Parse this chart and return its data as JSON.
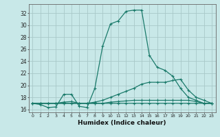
{
  "title": "",
  "xlabel": "Humidex (Indice chaleur)",
  "ylabel": "",
  "bg_color": "#c8e8e8",
  "grid_color": "#a8c8c8",
  "line_color": "#1a7a6a",
  "xlim": [
    -0.5,
    23.5
  ],
  "ylim": [
    15.5,
    33.5
  ],
  "xticks": [
    0,
    1,
    2,
    3,
    4,
    5,
    6,
    7,
    8,
    9,
    10,
    11,
    12,
    13,
    14,
    15,
    16,
    17,
    18,
    19,
    20,
    21,
    22,
    23
  ],
  "yticks": [
    16,
    18,
    20,
    22,
    24,
    26,
    28,
    30,
    32
  ],
  "series": [
    {
      "x": [
        0,
        1,
        2,
        3,
        4,
        5,
        6,
        7,
        8,
        9,
        10,
        11,
        12,
        13,
        14,
        15,
        16,
        17,
        18,
        19,
        20,
        21,
        22,
        23
      ],
      "y": [
        17.0,
        16.8,
        16.3,
        16.4,
        18.5,
        18.5,
        16.5,
        16.3,
        19.5,
        26.5,
        30.2,
        30.7,
        32.3,
        32.5,
        32.5,
        25.0,
        23.0,
        22.5,
        21.5,
        19.5,
        18.0,
        17.5,
        17.0,
        17.0
      ],
      "marker": "+",
      "linestyle": "-",
      "linewidth": 0.9,
      "markersize": 3
    },
    {
      "x": [
        0,
        1,
        2,
        3,
        4,
        5,
        6,
        7,
        8,
        9,
        10,
        11,
        12,
        13,
        14,
        15,
        16,
        17,
        18,
        19,
        20,
        21,
        22,
        23
      ],
      "y": [
        17.0,
        17.0,
        17.0,
        17.0,
        17.0,
        17.0,
        17.0,
        17.0,
        17.2,
        17.5,
        18.0,
        18.5,
        19.0,
        19.5,
        20.2,
        20.5,
        20.5,
        20.5,
        20.8,
        21.0,
        19.2,
        18.0,
        17.5,
        17.0
      ],
      "marker": "+",
      "linestyle": "-",
      "linewidth": 0.9,
      "markersize": 3
    },
    {
      "x": [
        0,
        1,
        2,
        3,
        4,
        5,
        6,
        7,
        8,
        9,
        10,
        11,
        12,
        13,
        14,
        15,
        16,
        17,
        18,
        19,
        20,
        21,
        22,
        23
      ],
      "y": [
        17.0,
        17.0,
        17.0,
        17.0,
        17.0,
        17.0,
        17.0,
        17.0,
        17.0,
        17.0,
        17.2,
        17.3,
        17.4,
        17.5,
        17.5,
        17.5,
        17.5,
        17.5,
        17.5,
        17.5,
        17.5,
        17.3,
        17.0,
        17.0
      ],
      "marker": "+",
      "linestyle": "-",
      "linewidth": 0.9,
      "markersize": 3
    },
    {
      "x": [
        0,
        1,
        2,
        3,
        4,
        5,
        6,
        7,
        8,
        9,
        10,
        11,
        12,
        13,
        14,
        15,
        16,
        17,
        18,
        19,
        20,
        21,
        22,
        23
      ],
      "y": [
        17.0,
        17.0,
        17.0,
        17.0,
        17.2,
        17.3,
        17.0,
        17.0,
        17.0,
        17.0,
        17.0,
        17.0,
        17.0,
        17.0,
        17.0,
        17.0,
        17.0,
        17.0,
        17.0,
        17.0,
        17.0,
        17.0,
        17.0,
        17.0
      ],
      "marker": "+",
      "linestyle": "-",
      "linewidth": 0.9,
      "markersize": 3
    }
  ]
}
